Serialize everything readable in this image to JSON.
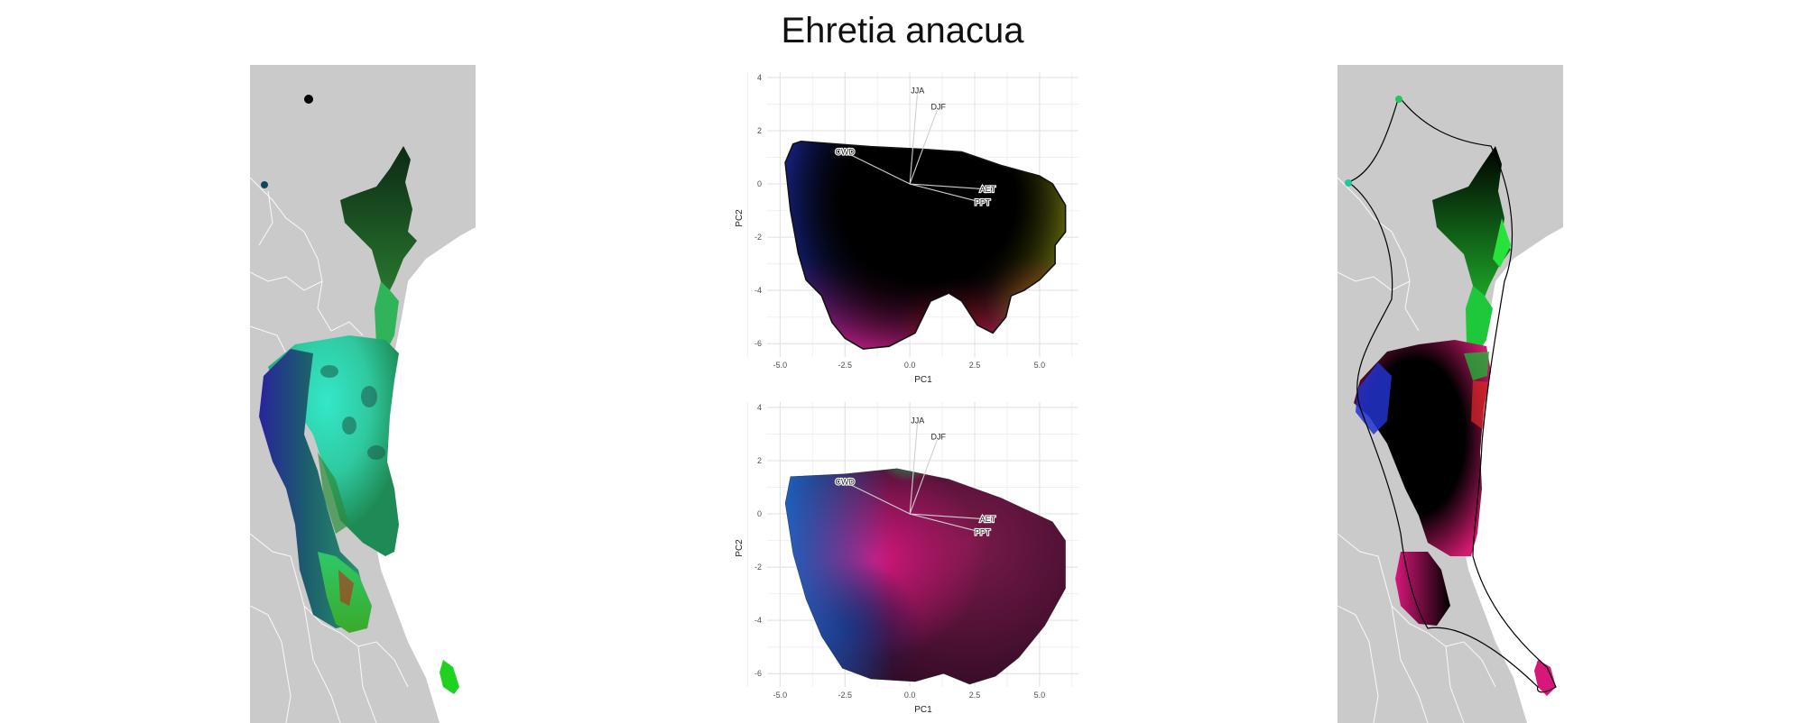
{
  "title": "Ehretia anacua",
  "chart_data": [
    {
      "type": "scatter",
      "panel": "pca-top",
      "xlabel": "PC1",
      "ylabel": "PC2",
      "xlim": [
        -5.5,
        6.5
      ],
      "ylim": [
        -6.5,
        4.2
      ],
      "xticks": [
        -5.0,
        -2.5,
        0.0,
        2.5,
        5.0
      ],
      "xtick_labels": [
        "-5.0",
        "-2.5",
        "0.0",
        "2.5",
        "5.0"
      ],
      "yticks": [
        4,
        2,
        0,
        -2,
        -4,
        -6
      ],
      "ytick_labels": [
        "4",
        "2",
        "0",
        "-2",
        "-4",
        "-6"
      ],
      "grid": true,
      "vectors": [
        {
          "label": "JJA",
          "x": 0.3,
          "y": 3.5
        },
        {
          "label": "DJF",
          "x": 1.1,
          "y": 2.9
        },
        {
          "label": "CWD",
          "x": -2.5,
          "y": 1.2
        },
        {
          "label": "AET",
          "x": 3.0,
          "y": -0.2
        },
        {
          "label": "PPT",
          "x": 2.8,
          "y": -0.7
        }
      ],
      "hull": [
        [
          -4.5,
          1.5
        ],
        [
          -4.2,
          1.6
        ],
        [
          -1.5,
          1.4
        ],
        [
          0.5,
          1.3
        ],
        [
          2.0,
          1.2
        ],
        [
          3.5,
          0.7
        ],
        [
          5.0,
          0.3
        ],
        [
          5.5,
          0.0
        ],
        [
          6.0,
          -0.8
        ],
        [
          6.0,
          -1.8
        ],
        [
          5.6,
          -2.3
        ],
        [
          5.6,
          -3.0
        ],
        [
          5.0,
          -3.6
        ],
        [
          4.4,
          -4.0
        ],
        [
          3.9,
          -4.2
        ],
        [
          3.7,
          -5.0
        ],
        [
          3.2,
          -5.6
        ],
        [
          2.6,
          -5.3
        ],
        [
          2.0,
          -4.4
        ],
        [
          1.5,
          -4.1
        ],
        [
          0.8,
          -4.4
        ],
        [
          0.2,
          -5.6
        ],
        [
          -0.8,
          -6.1
        ],
        [
          -1.8,
          -6.2
        ],
        [
          -2.5,
          -5.8
        ],
        [
          -3.0,
          -5.2
        ],
        [
          -3.4,
          -4.2
        ],
        [
          -4.0,
          -3.6
        ],
        [
          -4.3,
          -2.6
        ],
        [
          -4.6,
          -1.0
        ],
        [
          -4.8,
          0.8
        ]
      ]
    },
    {
      "type": "scatter",
      "panel": "pca-bottom",
      "xlabel": "PC1",
      "ylabel": "PC2",
      "xlim": [
        -5.5,
        6.5
      ],
      "ylim": [
        -6.5,
        4.2
      ],
      "xticks": [
        -5.0,
        -2.5,
        0.0,
        2.5,
        5.0
      ],
      "xtick_labels": [
        "-5.0",
        "-2.5",
        "0.0",
        "2.5",
        "5.0"
      ],
      "yticks": [
        4,
        2,
        0,
        -2,
        -4,
        -6
      ],
      "ytick_labels": [
        "4",
        "2",
        "0",
        "-2",
        "-4",
        "-6"
      ],
      "grid": true,
      "vectors": [
        {
          "label": "JJA",
          "x": 0.3,
          "y": 3.5
        },
        {
          "label": "DJF",
          "x": 1.1,
          "y": 2.9
        },
        {
          "label": "CWD",
          "x": -2.5,
          "y": 1.2
        },
        {
          "label": "AET",
          "x": 3.0,
          "y": -0.2
        },
        {
          "label": "PPT",
          "x": 2.8,
          "y": -0.7
        }
      ],
      "hull": [
        [
          -4.6,
          1.4
        ],
        [
          -2.5,
          1.5
        ],
        [
          -0.5,
          1.7
        ],
        [
          1.5,
          1.3
        ],
        [
          3.5,
          0.6
        ],
        [
          5.5,
          -0.3
        ],
        [
          6.0,
          -1.0
        ],
        [
          6.0,
          -2.8
        ],
        [
          5.2,
          -4.2
        ],
        [
          4.2,
          -5.4
        ],
        [
          3.3,
          -6.1
        ],
        [
          2.3,
          -6.4
        ],
        [
          1.3,
          -6.0
        ],
        [
          0.2,
          -6.3
        ],
        [
          -1.5,
          -6.2
        ],
        [
          -2.6,
          -5.8
        ],
        [
          -3.4,
          -4.6
        ],
        [
          -4.0,
          -3.2
        ],
        [
          -4.5,
          -1.5
        ],
        [
          -4.8,
          0.4
        ]
      ]
    }
  ]
}
